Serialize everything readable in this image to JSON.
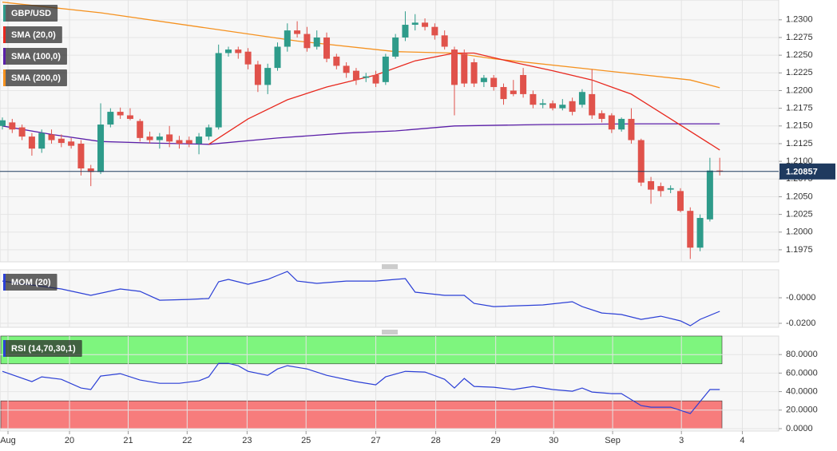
{
  "chart_data": [
    {
      "type": "candlestick",
      "title": "GBP/USD",
      "up_color": "#2e9b8a",
      "down_color": "#e0524b",
      "open": [
        1.215,
        1.2155,
        1.2148,
        1.2135,
        1.2118,
        1.2138,
        1.2132,
        1.2128,
        1.2125,
        1.209,
        1.2085,
        1.2152,
        1.217,
        1.2165,
        1.2157,
        1.2135,
        1.213,
        1.2138,
        1.213,
        1.213,
        1.2125,
        1.2135,
        1.2148,
        1.2253,
        1.2258,
        1.2255,
        1.2237,
        1.2208,
        1.2232,
        1.2262,
        1.2285,
        1.228,
        1.2262,
        1.2275,
        1.2248,
        1.2235,
        1.2228,
        1.2218,
        1.2222,
        1.2212,
        1.2248,
        1.2275,
        1.2293,
        1.2296,
        1.229,
        1.2278,
        1.2258,
        1.2252,
        1.224,
        1.2212,
        1.2218,
        1.2205,
        1.22,
        1.2222,
        1.2195,
        1.218,
        1.2182,
        1.2175,
        1.2185,
        1.218,
        1.2195,
        1.2168,
        1.2165,
        1.2145,
        1.216,
        1.213,
        1.2072,
        1.2065,
        1.206,
        1.2058,
        1.203,
        1.1978,
        1.2018,
        1.2087
      ],
      "high": [
        1.2162,
        1.216,
        1.2152,
        1.214,
        1.2145,
        1.2145,
        1.2138,
        1.2133,
        1.213,
        1.2095,
        1.2182,
        1.2175,
        1.2176,
        1.2175,
        1.216,
        1.2142,
        1.214,
        1.215,
        1.2136,
        1.2135,
        1.214,
        1.2152,
        1.2265,
        1.2262,
        1.2262,
        1.226,
        1.2242,
        1.2238,
        1.2268,
        1.2295,
        1.2298,
        1.229,
        1.2285,
        1.2282,
        1.2252,
        1.224,
        1.2232,
        1.2225,
        1.2228,
        1.2252,
        1.228,
        1.2312,
        1.2308,
        1.2302,
        1.2295,
        1.2285,
        1.2262,
        1.2258,
        1.2245,
        1.2222,
        1.2222,
        1.221,
        1.2215,
        1.2232,
        1.22,
        1.2188,
        1.2186,
        1.2188,
        1.219,
        1.2202,
        1.223,
        1.2172,
        1.2168,
        1.2162,
        1.2175,
        1.2132,
        1.2078,
        1.207,
        1.2066,
        1.2062,
        1.2035,
        1.2025,
        1.2105,
        1.2105
      ],
      "low": [
        1.2145,
        1.214,
        1.213,
        1.2108,
        1.2112,
        1.2125,
        1.212,
        1.2118,
        1.208,
        1.2065,
        1.2082,
        1.2148,
        1.216,
        1.2158,
        1.2128,
        1.2125,
        1.2118,
        1.212,
        1.2118,
        1.212,
        1.211,
        1.213,
        1.2145,
        1.2248,
        1.2245,
        1.223,
        1.2198,
        1.2195,
        1.2228,
        1.2255,
        1.2275,
        1.2255,
        1.2258,
        1.224,
        1.223,
        1.2218,
        1.2208,
        1.2212,
        1.2205,
        1.2208,
        1.2245,
        1.227,
        1.2285,
        1.2285,
        1.2272,
        1.2258,
        1.2165,
        1.2205,
        1.2205,
        1.2205,
        1.22,
        1.218,
        1.2192,
        1.219,
        1.2175,
        1.2175,
        1.2172,
        1.2172,
        1.2165,
        1.2176,
        1.216,
        1.2155,
        1.214,
        1.2142,
        1.2125,
        1.2065,
        1.204,
        1.205,
        1.2055,
        1.2028,
        1.1962,
        1.1973,
        1.2015,
        1.208
      ],
      "close": [
        1.2158,
        1.2145,
        1.2135,
        1.2118,
        1.214,
        1.213,
        1.2126,
        1.2122,
        1.209,
        1.2085,
        1.2152,
        1.217,
        1.2165,
        1.216,
        1.2133,
        1.213,
        1.2135,
        1.2128,
        1.2125,
        1.2125,
        1.2135,
        1.2148,
        1.2253,
        1.2258,
        1.2253,
        1.2237,
        1.2208,
        1.2232,
        1.2262,
        1.2285,
        1.228,
        1.226,
        1.2275,
        1.2245,
        1.2235,
        1.2225,
        1.2215,
        1.222,
        1.221,
        1.2248,
        1.2275,
        1.2293,
        1.2296,
        1.229,
        1.2278,
        1.2262,
        1.2208,
        1.221,
        1.221,
        1.2218,
        1.2205,
        1.2188,
        1.2195,
        1.2195,
        1.218,
        1.2182,
        1.2175,
        1.218,
        1.217,
        1.2198,
        1.2165,
        1.216,
        1.2145,
        1.216,
        1.213,
        1.207,
        1.206,
        1.2058,
        1.2062,
        1.203,
        1.1978,
        1.202,
        1.2087,
        1.2086
      ],
      "lines": [
        {
          "name": "SMA (20,0)",
          "color": "#e8281e",
          "x": [
            21,
            25,
            29,
            33,
            38,
            42,
            46,
            48,
            52,
            56,
            60,
            64,
            68,
            73
          ],
          "values": [
            1.2124,
            1.216,
            1.2187,
            1.2205,
            1.2222,
            1.2242,
            1.2253,
            1.2253,
            1.224,
            1.2228,
            1.2215,
            1.2195,
            1.216,
            1.2116
          ]
        },
        {
          "name": "SMA (100,0)",
          "color": "#5b1fa8",
          "x": [
            0,
            5,
            10,
            15,
            21,
            28,
            35,
            40,
            46,
            55,
            65,
            73
          ],
          "values": [
            1.215,
            1.2138,
            1.2128,
            1.2126,
            1.2124,
            1.2133,
            1.214,
            1.2143,
            1.215,
            1.2152,
            1.2153,
            1.2153
          ]
        },
        {
          "name": "SMA (200,0)",
          "color": "#f5911e",
          "x": [
            0,
            10,
            20,
            30,
            40,
            46,
            50,
            60,
            70,
            73
          ],
          "values": [
            1.2325,
            1.231,
            1.229,
            1.227,
            1.2255,
            1.2253,
            1.2245,
            1.223,
            1.2215,
            1.2204
          ]
        }
      ],
      "last_price": 1.20857,
      "ylim": [
        1.1958,
        1.2328
      ],
      "yticks": [
        {
          "value": 1.23,
          "label": "1.2300"
        },
        {
          "value": 1.2275,
          "label": "1.2275"
        },
        {
          "value": 1.225,
          "label": "1.2250"
        },
        {
          "value": 1.2225,
          "label": "1.2225"
        },
        {
          "value": 1.22,
          "label": "1.2200"
        },
        {
          "value": 1.2175,
          "label": "1.2175"
        },
        {
          "value": 1.215,
          "label": "1.2150"
        },
        {
          "value": 1.2125,
          "label": "1.2125"
        },
        {
          "value": 1.21,
          "label": "1.2100"
        },
        {
          "value": 1.2075,
          "label": "1.2075"
        },
        {
          "value": 1.205,
          "label": "1.2050"
        },
        {
          "value": 1.2025,
          "label": "1.2025"
        },
        {
          "value": 1.2,
          "label": "1.2000"
        },
        {
          "value": 1.1975,
          "label": "1.1975"
        }
      ]
    },
    {
      "type": "line",
      "series": [
        {
          "name": "MOM (20)",
          "color": "#2b3fd6",
          "x": [
            0,
            3,
            6,
            9,
            12,
            14,
            16,
            19,
            21,
            22,
            23,
            25,
            27,
            28,
            29,
            30,
            32,
            35,
            38,
            40,
            41,
            42,
            45,
            47,
            48,
            50,
            55,
            58,
            59,
            61,
            63,
            65,
            67,
            69,
            70,
            71,
            73
          ],
          "values": [
            0.0131,
            0.01,
            0.0069,
            0.0019,
            0.0069,
            0.005,
            -0.0019,
            -0.0013,
            -0.0006,
            0.0125,
            0.0144,
            0.0106,
            0.0144,
            0.0175,
            0.0206,
            0.0131,
            0.0113,
            0.0131,
            0.0131,
            0.0144,
            0.015,
            0.0044,
            0.0019,
            0.0019,
            -0.0044,
            -0.0069,
            -0.0056,
            -0.0031,
            -0.0069,
            -0.0119,
            -0.0131,
            -0.0169,
            -0.0144,
            -0.0181,
            -0.0219,
            -0.0169,
            -0.0106
          ]
        }
      ],
      "ylim": [
        -0.0231,
        0.0219
      ],
      "yticks": [
        {
          "value": 0,
          "label": "-0.0000"
        },
        {
          "value": -0.02,
          "label": "-0.0200"
        }
      ]
    },
    {
      "type": "line",
      "series": [
        {
          "name": "RSI (14,70,30,1)",
          "color": "#2b3fd6",
          "x": [
            0,
            3,
            4,
            6,
            8,
            9,
            10,
            12,
            14,
            16,
            18,
            20,
            21,
            22,
            23,
            24,
            25,
            27,
            28,
            29,
            31,
            33,
            36,
            38,
            39,
            41,
            43,
            45,
            46,
            47,
            48,
            50,
            52,
            54,
            56,
            58,
            59,
            60,
            62,
            63,
            65,
            66,
            68,
            70,
            72,
            73
          ],
          "values": [
            61.9,
            50.8,
            55.9,
            53.3,
            43.9,
            42.2,
            56.8,
            59.4,
            52.5,
            49.0,
            49.0,
            51.6,
            55.9,
            70.5,
            70.5,
            67.9,
            61.9,
            57.6,
            64.5,
            68.0,
            64.5,
            57.6,
            50.8,
            47.3,
            55.9,
            61.9,
            61.1,
            53.3,
            43.9,
            54.2,
            45.6,
            44.7,
            42.2,
            45.6,
            42.2,
            40.4,
            43.9,
            39.6,
            37.8,
            37.8,
            24.9,
            23.2,
            23.2,
            16.3,
            42.2,
            42.2
          ]
        }
      ],
      "bands": [
        {
          "from": 70,
          "to": 100,
          "color": "#7ef57e"
        },
        {
          "from": 0,
          "to": 30,
          "color": "#f77c7c"
        }
      ],
      "ylim": [
        -2.6,
        100
      ],
      "yticks": [
        {
          "value": 80,
          "label": "80.0000"
        },
        {
          "value": 60,
          "label": "60.0000"
        },
        {
          "value": 40,
          "label": "40.0000"
        },
        {
          "value": 20,
          "label": "20.0000"
        },
        {
          "value": 0,
          "label": "0.0000"
        }
      ],
      "xlim": [
        -0.244,
        79.0
      ],
      "xticks": [
        {
          "value": 0.57,
          "label": "Aug"
        },
        {
          "value": 6.83,
          "label": "20"
        },
        {
          "value": 12.8,
          "label": "21"
        },
        {
          "value": 18.8,
          "label": "22"
        },
        {
          "value": 24.9,
          "label": "23"
        },
        {
          "value": 30.9,
          "label": "25"
        },
        {
          "value": 38.0,
          "label": "27"
        },
        {
          "value": 44.1,
          "label": "28"
        },
        {
          "value": 50.2,
          "label": "29"
        },
        {
          "value": 56.1,
          "label": "30"
        },
        {
          "value": 62.1,
          "label": "Sep"
        },
        {
          "value": 69.1,
          "label": "3"
        },
        {
          "value": 75.3,
          "label": "4"
        }
      ]
    }
  ]
}
